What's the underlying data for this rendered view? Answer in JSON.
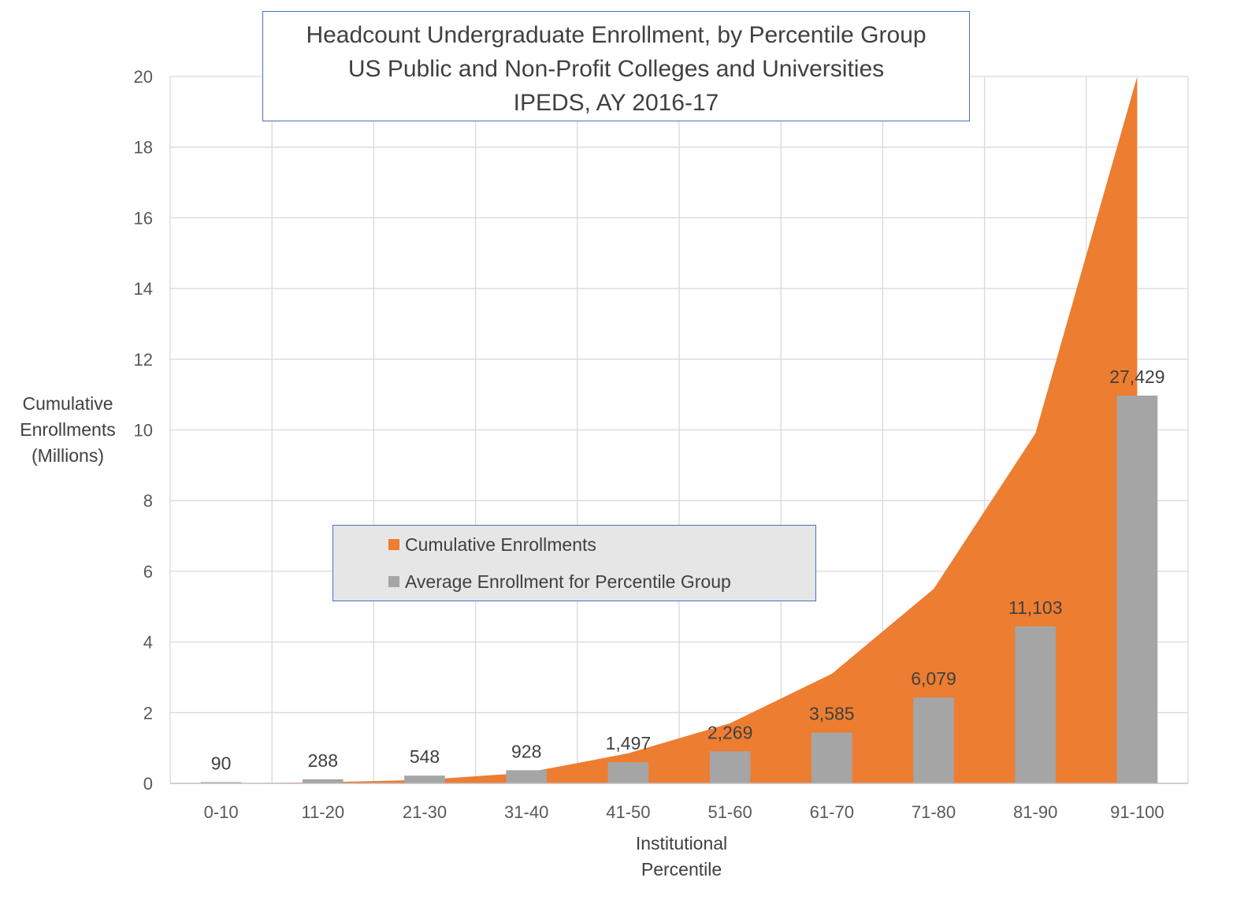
{
  "chart_data": {
    "type": "bar",
    "title_lines": [
      "Headcount Undergraduate Enrollment, by Percentile Group",
      "US Public and Non-Profit Colleges and Universities",
      "IPEDS, AY 2016-17"
    ],
    "ylabel_lines": [
      "Cumulative",
      "Enrollments",
      "(Millions)"
    ],
    "xlabel_lines": [
      "Institutional",
      "Percentile"
    ],
    "categories": [
      "0-10",
      "11-20",
      "21-30",
      "31-40",
      "41-50",
      "51-60",
      "61-70",
      "71-80",
      "81-90",
      "91-100"
    ],
    "ylim": [
      0,
      20
    ],
    "yticks": [
      0,
      2,
      4,
      6,
      8,
      10,
      12,
      14,
      16,
      18,
      20
    ],
    "grid": true,
    "legend_position": "center-left",
    "series": [
      {
        "name": "Cumulative Enrollments",
        "type": "area",
        "color": "#ed7d31",
        "values": [
          0.0,
          0.03,
          0.1,
          0.3,
          0.85,
          1.7,
          3.1,
          5.5,
          9.9,
          20.2
        ]
      },
      {
        "name": "Average Enrollment for Percentile Group",
        "type": "bar",
        "color": "#a5a5a5",
        "values": [
          0.036,
          0.115,
          0.219,
          0.371,
          0.599,
          0.908,
          1.434,
          2.432,
          4.441,
          10.97
        ],
        "data_labels": [
          "90",
          "288",
          "548",
          "928",
          "1,497",
          "2,269",
          "3,585",
          "6,079",
          "11,103",
          "27,429"
        ]
      }
    ]
  }
}
